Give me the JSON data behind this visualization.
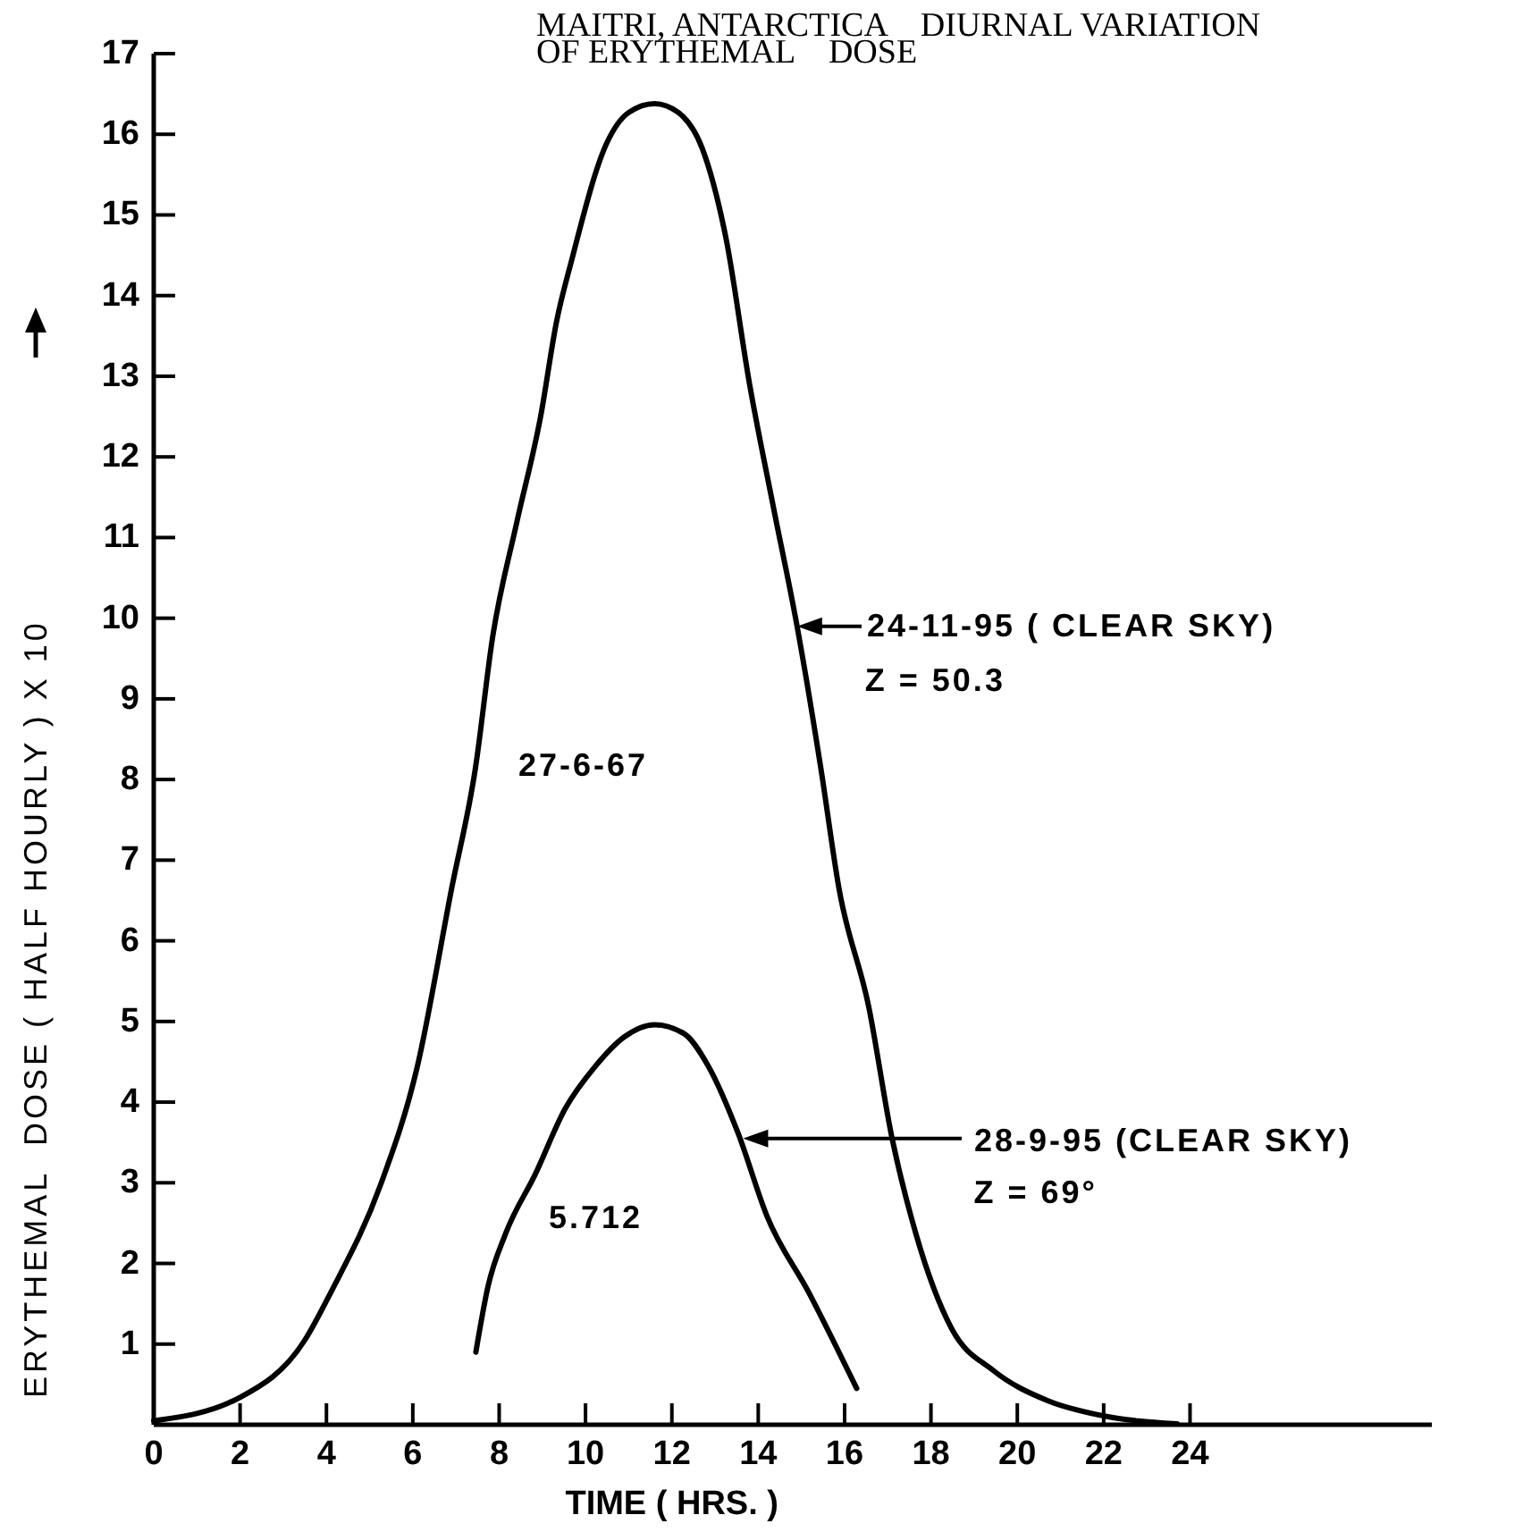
{
  "chart_data": {
    "type": "line",
    "title": "MAITRI, ANTARCTICA    DIURNAL VARIATION OF ERYTHEMAL    DOSE",
    "xlabel": "TIME ( HRS. )",
    "ylabel": "ERYTHEMAL  DOSE ( HALF HOURLY ) X 10",
    "xlim": [
      0,
      29.6
    ],
    "ylim": [
      0,
      17
    ],
    "xticks": [
      0,
      2,
      4,
      6,
      8,
      10,
      12,
      14,
      16,
      18,
      20,
      22,
      24
    ],
    "yticks": [
      {
        "value": 0,
        "label": null
      },
      1,
      2,
      3,
      4,
      5,
      6,
      7,
      8,
      9,
      10,
      11,
      12,
      13,
      14,
      15,
      16,
      17
    ],
    "marker": "none",
    "line_style": "solid",
    "legend": "right",
    "series": [
      {
        "name": "24-11-95 ( CLEAR SKY)",
        "color": "#000000",
        "x": [
          0,
          2,
          3.5,
          4.1,
          5.25,
          6.1,
          6.9,
          7.45,
          7.85,
          8.4,
          8.96,
          9.33,
          9.67,
          10.5,
          11.0,
          11.6,
          12.15,
          12.7,
          13.25,
          13.8,
          14.35,
          14.9,
          15.45,
          15.87,
          16.56,
          17.1,
          17.65,
          18.47,
          19.45,
          20.7,
          21.9,
          23.7
        ],
        "values": [
          0.05,
          0.34,
          1.05,
          1.64,
          2.97,
          4.43,
          6.65,
          8.14,
          9.77,
          11.17,
          12.5,
          13.68,
          14.42,
          15.9,
          16.27,
          16.38,
          16.27,
          15.83,
          14.72,
          12.9,
          11.38,
          9.9,
          8.14,
          6.65,
          5.18,
          3.55,
          2.37,
          1.2,
          0.67,
          0.3,
          0.12,
          0.01
        ]
      },
      {
        "name": "28-9-95 (CLEAR SKY)",
        "color": "#000000",
        "x": [
          7.46,
          7.74,
          8.15,
          8.84,
          9.53,
          10.22,
          10.9,
          11.6,
          12.28,
          12.84,
          13.53,
          14.2,
          15.18,
          16.28
        ],
        "values": [
          0.9,
          1.71,
          2.37,
          3.11,
          3.92,
          4.44,
          4.81,
          4.96,
          4.85,
          4.45,
          3.62,
          2.59,
          1.63,
          0.45
        ]
      }
    ],
    "annotations": [
      "27-6-67",
      "5.712",
      {
        "text": "Z = 50.3",
        "x": 14.9,
        "y": 9.9
      },
      {
        "text": "Z = 69°",
        "x": 13.65,
        "y": 3.55
      }
    ]
  }
}
